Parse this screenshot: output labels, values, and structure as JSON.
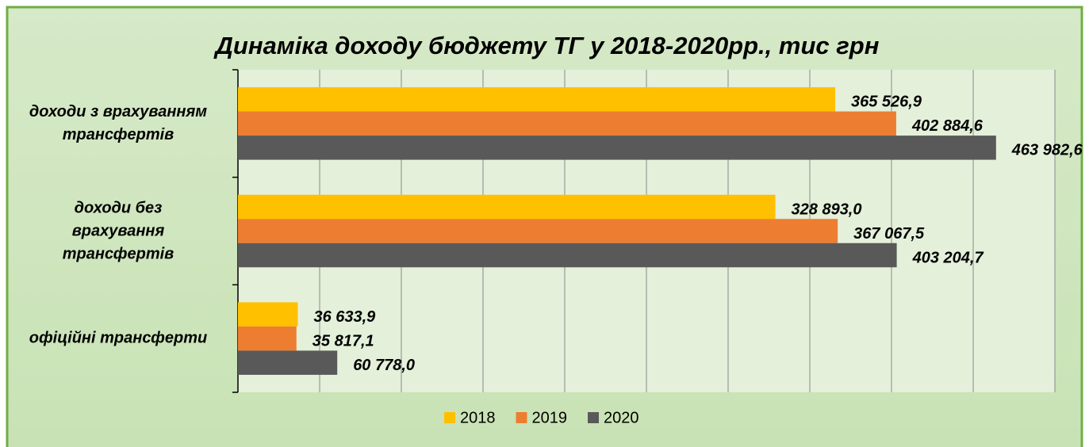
{
  "chart_data": {
    "type": "barh",
    "title": "Динаміка доходу бюджету ТГ у 2018-2020рр., тис грн",
    "categories": [
      "доходи з врахуванням\nтрансфертів",
      "доходи без\nврахування\nтрансфертів",
      "офіційні трансферти"
    ],
    "series": [
      {
        "name": "2018",
        "color": "#ffc000",
        "values": [
          365526.9,
          328893.0,
          36633.9
        ],
        "value_labels": [
          "365 526,9",
          "328 893,0",
          "36 633,9"
        ]
      },
      {
        "name": "2019",
        "color": "#ed7d31",
        "values": [
          402884.6,
          367067.5,
          35817.1
        ],
        "value_labels": [
          "402 884,6",
          "367 067,5",
          "35 817,1"
        ]
      },
      {
        "name": "2020",
        "color": "#595959",
        "values": [
          463982.6,
          403204.7,
          60778.0
        ],
        "value_labels": [
          "463 982,6",
          "403 204,7",
          "60 778,0"
        ]
      }
    ],
    "xlim": [
      0,
      500000
    ],
    "xticks": [
      0,
      50000,
      100000,
      150000,
      200000,
      250000,
      300000,
      350000,
      400000,
      450000,
      500000
    ],
    "grid": true,
    "legend": "bottom"
  }
}
